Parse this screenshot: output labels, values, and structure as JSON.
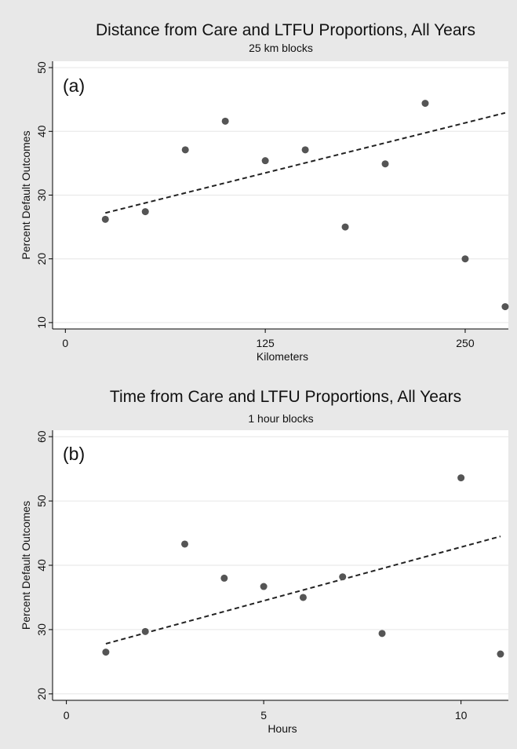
{
  "chart_data": [
    {
      "type": "scatter",
      "title": "Distance from Care and LTFU Proportions, All Years",
      "subtitle": "25 km blocks",
      "panel_label": "(a)",
      "xlabel": "Kilometers",
      "ylabel": "Percent Default Outcomes",
      "xlim": [
        -8,
        277
      ],
      "ylim": [
        9,
        51
      ],
      "xticks": [
        0,
        125,
        250
      ],
      "xtick_labels": [
        "0",
        "125",
        "250"
      ],
      "yticks": [
        10,
        20,
        30,
        40,
        50
      ],
      "ytick_labels": [
        "10",
        "20",
        "30",
        "40",
        "50"
      ],
      "grid": "horizontal",
      "points": [
        {
          "x": 25,
          "y": 26.2
        },
        {
          "x": 50,
          "y": 27.4
        },
        {
          "x": 75,
          "y": 37.1
        },
        {
          "x": 100,
          "y": 41.6
        },
        {
          "x": 125,
          "y": 35.4
        },
        {
          "x": 150,
          "y": 37.1
        },
        {
          "x": 175,
          "y": 25.0
        },
        {
          "x": 200,
          "y": 34.9
        },
        {
          "x": 225,
          "y": 44.4
        },
        {
          "x": 250,
          "y": 20.0
        },
        {
          "x": 275,
          "y": 12.5
        }
      ],
      "fit_line": {
        "x": [
          25,
          275
        ],
        "y": [
          27.2,
          42.9
        ],
        "style": "dashed"
      }
    },
    {
      "type": "scatter",
      "title": "Time from Care and LTFU Proportions, All Years",
      "subtitle": "1 hour blocks",
      "panel_label": "(b)",
      "xlabel": "Hours",
      "ylabel": "Percent Default Outcomes",
      "xlim": [
        -0.35,
        11.2
      ],
      "ylim": [
        19,
        61
      ],
      "xticks": [
        0,
        5,
        10
      ],
      "xtick_labels": [
        "0",
        "5",
        "10"
      ],
      "yticks": [
        20,
        30,
        40,
        50,
        60
      ],
      "ytick_labels": [
        "20",
        "30",
        "40",
        "50",
        "60"
      ],
      "grid": "horizontal",
      "points": [
        {
          "x": 1,
          "y": 26.5
        },
        {
          "x": 2,
          "y": 29.7
        },
        {
          "x": 3,
          "y": 43.3
        },
        {
          "x": 4,
          "y": 38.0
        },
        {
          "x": 5,
          "y": 36.7
        },
        {
          "x": 6,
          "y": 35.0
        },
        {
          "x": 7,
          "y": 38.2
        },
        {
          "x": 8,
          "y": 29.4
        },
        {
          "x": 10,
          "y": 53.6
        },
        {
          "x": 11,
          "y": 26.2
        }
      ],
      "fit_line": {
        "x": [
          1,
          11
        ],
        "y": [
          27.8,
          44.5
        ],
        "style": "dashed"
      }
    }
  ],
  "colors": {
    "figure_background": "#e8e8e8",
    "plot_background": "#ffffff",
    "grid": "#e6e6e6",
    "marker": "#555555",
    "fit_line": "#222222",
    "text": "#111111"
  }
}
